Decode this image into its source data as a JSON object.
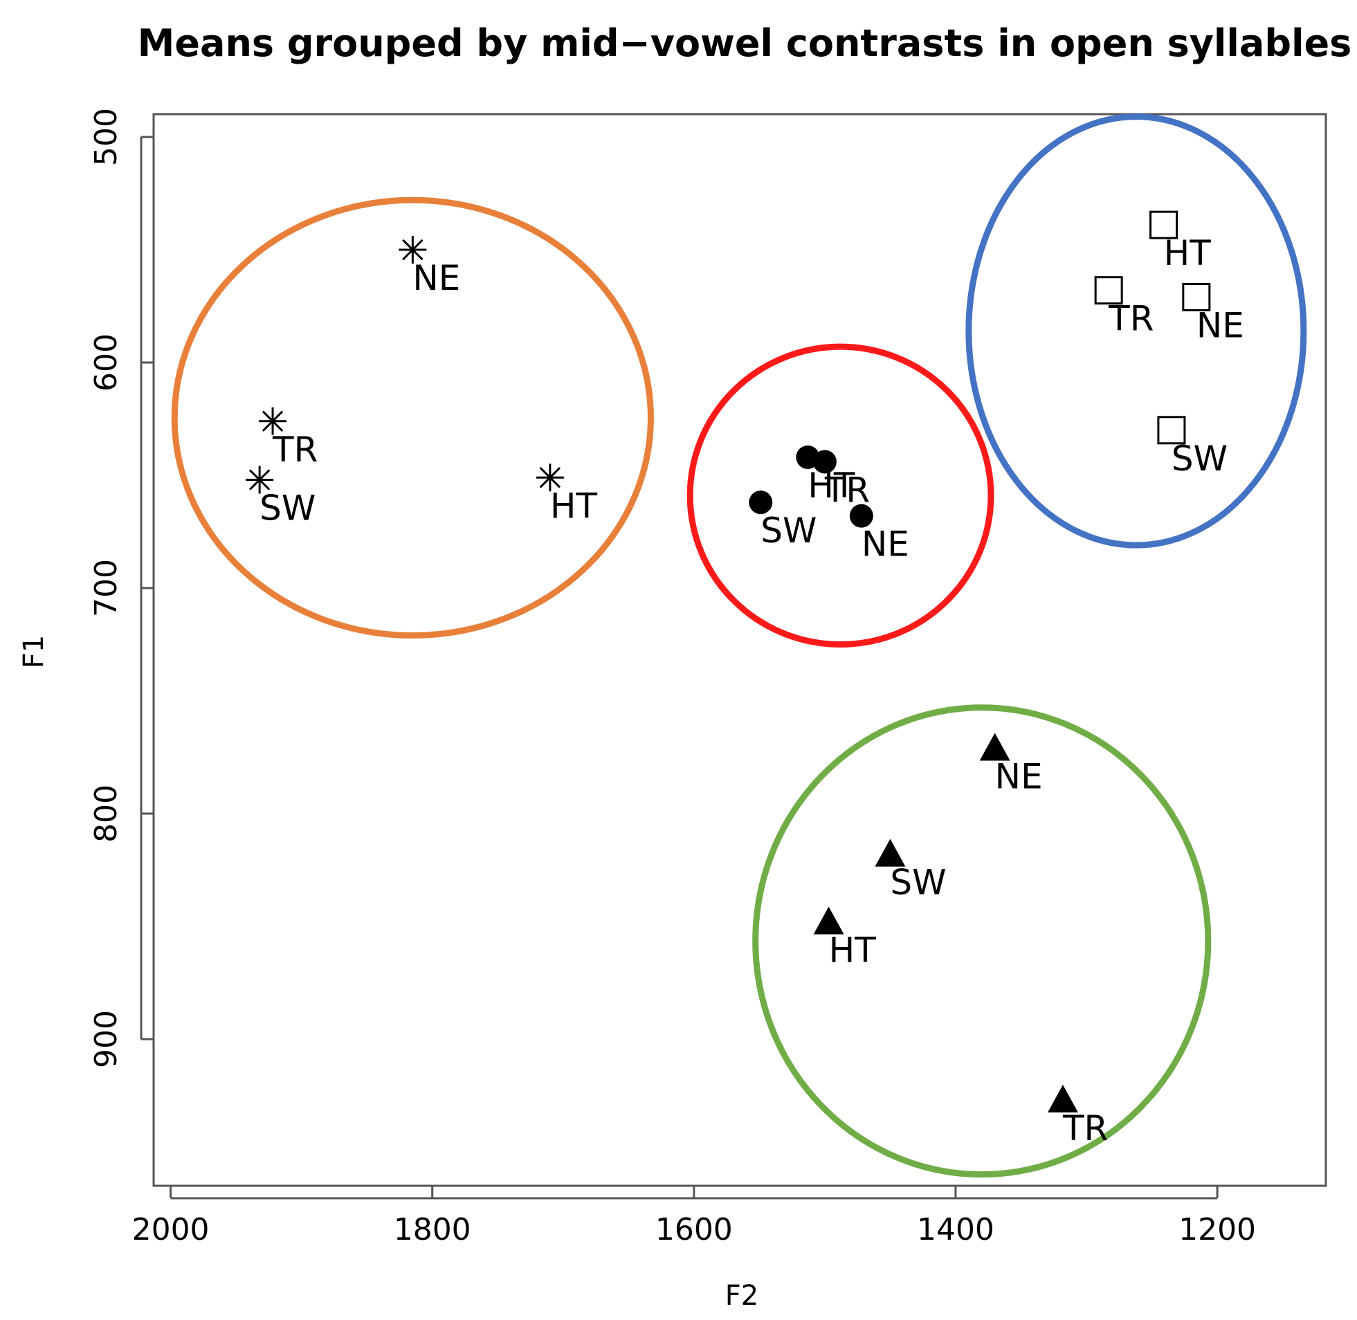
{
  "chart_data": {
    "type": "scatter",
    "title": "Means grouped by mid−vowel contrasts in open syllables",
    "xlabel": "F2",
    "ylabel": "F1",
    "xlim": [
      2013,
      1117
    ],
    "ylim": [
      500,
      975
    ],
    "x_reversed": true,
    "y_reversed": true,
    "x_ticks": [
      2000,
      1800,
      1600,
      1400,
      1200
    ],
    "y_ticks": [
      500,
      600,
      700,
      800,
      900
    ],
    "grid": false,
    "series": [
      {
        "name": "asterisk",
        "marker": "asterisk",
        "group_color": "#e8803a",
        "points": [
          {
            "label": "NE",
            "x": 1815,
            "y": 550
          },
          {
            "label": "TR",
            "x": 1922,
            "y": 626
          },
          {
            "label": "SW",
            "x": 1932,
            "y": 652
          },
          {
            "label": "HT",
            "x": 1710,
            "y": 651
          }
        ]
      },
      {
        "name": "filled circle",
        "marker": "circle",
        "group_color": "#ff1a1a",
        "points": [
          {
            "label": "HT",
            "x": 1513,
            "y": 642
          },
          {
            "label": "TR",
            "x": 1500,
            "y": 644
          },
          {
            "label": "SW",
            "x": 1549,
            "y": 662
          },
          {
            "label": "NE",
            "x": 1472,
            "y": 668
          }
        ]
      },
      {
        "name": "open square",
        "marker": "square",
        "group_color": "#4472c4",
        "points": [
          {
            "label": "HT",
            "x": 1241,
            "y": 539
          },
          {
            "label": "TR",
            "x": 1283,
            "y": 568
          },
          {
            "label": "NE",
            "x": 1216,
            "y": 571
          },
          {
            "label": "SW",
            "x": 1235,
            "y": 630
          }
        ]
      },
      {
        "name": "filled triangle",
        "marker": "triangle",
        "group_color": "#70ad47",
        "points": [
          {
            "label": "NE",
            "x": 1370,
            "y": 771
          },
          {
            "label": "SW",
            "x": 1450,
            "y": 818
          },
          {
            "label": "HT",
            "x": 1497,
            "y": 848
          },
          {
            "label": "TR",
            "x": 1318,
            "y": 927
          }
        ]
      }
    ],
    "groups": [
      {
        "color": "#e8803a",
        "cx": 1815,
        "cy": 624.5,
        "rx": 182,
        "ry": 96.5
      },
      {
        "color": "#ff1a1a",
        "cx": 1488,
        "cy": 659,
        "rx": 115,
        "ry": 66
      },
      {
        "color": "#4472c4",
        "cx": 1262,
        "cy": 586,
        "rx": 128,
        "ry": 95
      },
      {
        "color": "#70ad47",
        "cx": 1380,
        "cy": 856.5,
        "rx": 173,
        "ry": 103.5
      }
    ]
  }
}
